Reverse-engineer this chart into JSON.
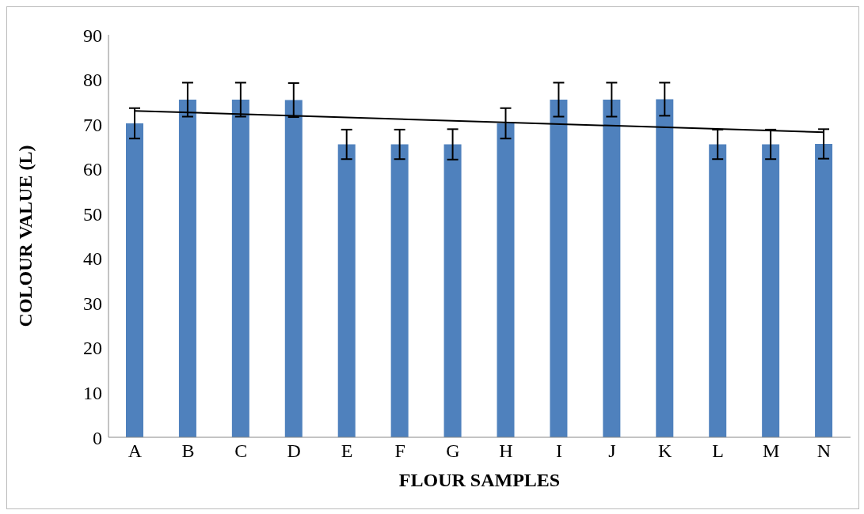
{
  "chart_data": {
    "type": "bar",
    "xlabel": "FLOUR SAMPLES",
    "ylabel": "COLOUR VALUE (L)",
    "categories": [
      "A",
      "B",
      "C",
      "D",
      "E",
      "F",
      "G",
      "H",
      "I",
      "J",
      "K",
      "L",
      "M",
      "N"
    ],
    "series": [
      {
        "color": "#4f81bd",
        "values": [
          70.2,
          75.5,
          75.5,
          75.4,
          65.5,
          65.5,
          65.5,
          70.2,
          75.5,
          75.5,
          75.6,
          65.5,
          65.5,
          65.6
        ],
        "errors": [
          3.4,
          3.8,
          3.8,
          3.8,
          3.3,
          3.3,
          3.4,
          3.4,
          3.8,
          3.8,
          3.7,
          3.3,
          3.3,
          3.3
        ]
      },
      {
        "type": "line",
        "color": "#000000",
        "x": [
          "A",
          "N"
        ],
        "values": [
          73.0,
          68.2
        ]
      }
    ],
    "ylim": [
      0,
      90
    ],
    "yticks": [
      0,
      10,
      20,
      30,
      40,
      50,
      60,
      70,
      80,
      90
    ],
    "grid": false,
    "legend": false
  }
}
